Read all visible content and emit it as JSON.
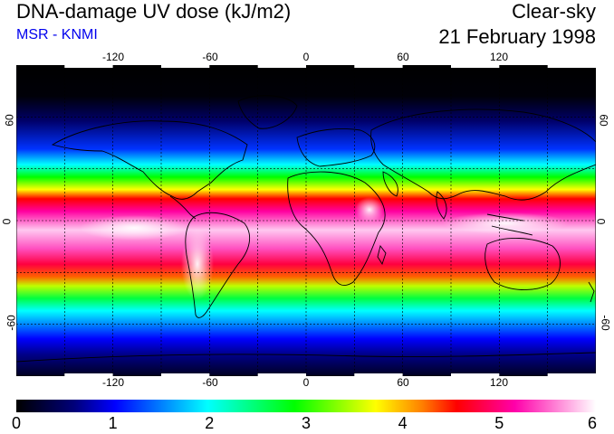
{
  "header": {
    "title": "DNA-damage UV dose (kJ/m2)",
    "credit": "MSR - KNMI",
    "condition": "Clear-sky",
    "date": "21 February 1998"
  },
  "map": {
    "lon_ticks": [
      "-120",
      "-60",
      "0",
      "60",
      "120"
    ],
    "lat_ticks": [
      "60",
      "0",
      "-60"
    ],
    "lon_range": [
      -180,
      180
    ],
    "lat_range": [
      -90,
      90
    ],
    "grid_lon_step": 30,
    "grid_lat_step": 30,
    "grid": true
  },
  "colorbar": {
    "labels": [
      "0",
      "1",
      "2",
      "3",
      "4",
      "5",
      "6"
    ],
    "range": [
      0,
      6
    ],
    "colors": [
      "#000000",
      "#0000ff",
      "#00ffff",
      "#00ff00",
      "#ffff00",
      "#ff0000",
      "#ff00aa",
      "#ffffff"
    ]
  },
  "colors": {
    "credit": "#0000ee"
  }
}
